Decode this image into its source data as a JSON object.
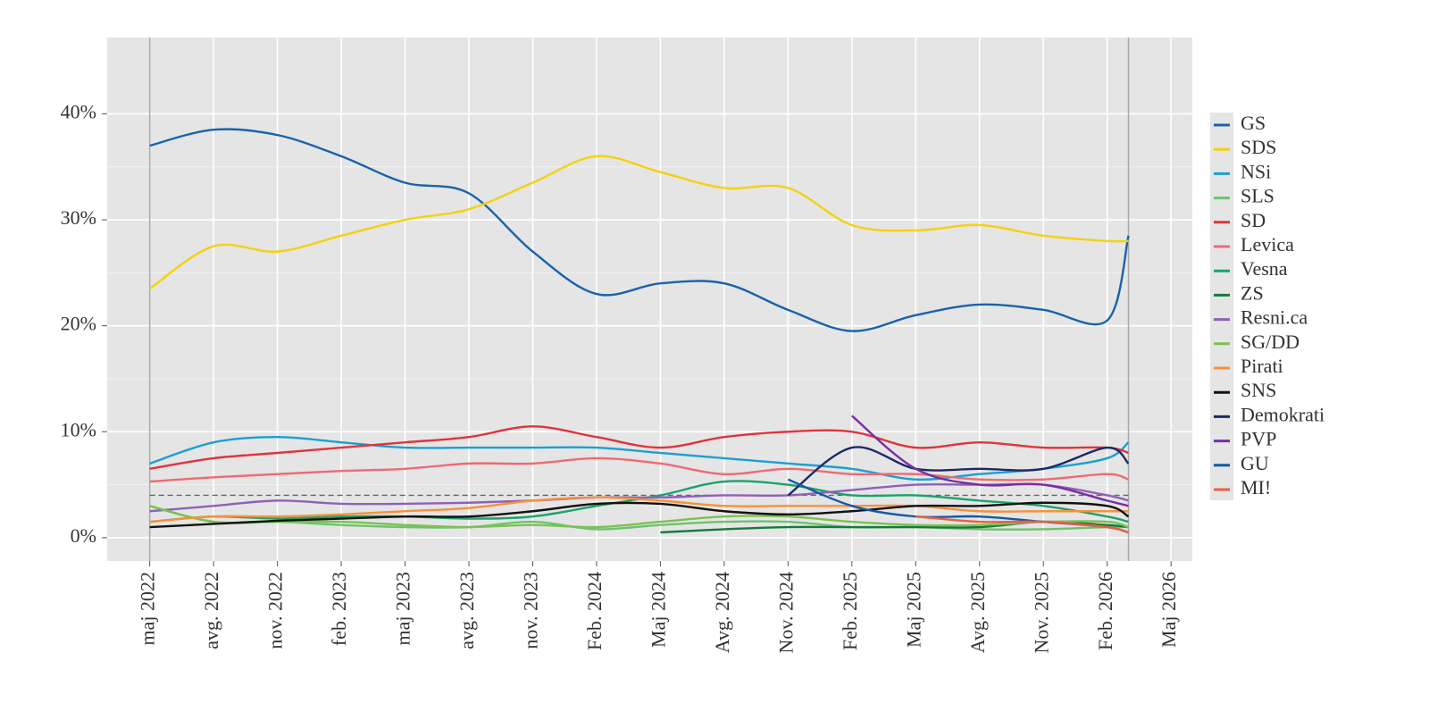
{
  "chart_data": {
    "type": "line",
    "x": [
      "2022-05",
      "2022-08",
      "2022-11",
      "2023-02",
      "2023-05",
      "2023-08",
      "2023-11",
      "2024-02",
      "2024-05",
      "2024-08",
      "2024-11",
      "2025-02",
      "2025-05",
      "2025-08",
      "2025-11",
      "2026-02",
      "2026-03"
    ],
    "xlim": [
      "2022-03",
      "2026-06"
    ],
    "xticks": [
      {
        "value": "2022-05",
        "label": "maj 2022"
      },
      {
        "value": "2022-08",
        "label": "avg. 2022"
      },
      {
        "value": "2022-11",
        "label": "nov. 2022"
      },
      {
        "value": "2023-02",
        "label": "feb. 2023"
      },
      {
        "value": "2023-05",
        "label": "maj 2023"
      },
      {
        "value": "2023-08",
        "label": "avg. 2023"
      },
      {
        "value": "2023-11",
        "label": "nov. 2023"
      },
      {
        "value": "2024-02",
        "label": "Feb. 2024"
      },
      {
        "value": "2024-05",
        "label": "Maj 2024"
      },
      {
        "value": "2024-08",
        "label": "Avg. 2024"
      },
      {
        "value": "2024-11",
        "label": "Nov. 2024"
      },
      {
        "value": "2025-02",
        "label": "Feb. 2025"
      },
      {
        "value": "2025-05",
        "label": "Maj 2025"
      },
      {
        "value": "2025-08",
        "label": "Avg. 2025"
      },
      {
        "value": "2025-11",
        "label": "Nov. 2025"
      },
      {
        "value": "2026-02",
        "label": "Feb. 2026"
      },
      {
        "value": "2026-05",
        "label": "Maj 2026"
      }
    ],
    "ylim": [
      -2.2,
      47.2
    ],
    "yticks": [
      {
        "value": 0,
        "label": "0%"
      },
      {
        "value": 10,
        "label": "10%"
      },
      {
        "value": 20,
        "label": "20%"
      },
      {
        "value": 30,
        "label": "30%"
      },
      {
        "value": 40,
        "label": "40%"
      }
    ],
    "threshold": 4,
    "grid": true,
    "legend": "right",
    "series": [
      {
        "name": "GS",
        "color": "#1a62ac",
        "values": [
          37,
          38.5,
          38,
          36,
          33.5,
          32.5,
          27,
          23,
          24,
          24,
          21.5,
          19.5,
          21,
          22,
          21.5,
          20.5,
          28.5
        ]
      },
      {
        "name": "SDS",
        "color": "#f5d10e",
        "values": [
          23.5,
          27.5,
          27,
          28.5,
          30,
          31,
          33.5,
          36,
          34.5,
          33,
          33,
          29.5,
          29,
          29.5,
          28.5,
          28,
          28
        ]
      },
      {
        "name": "NSi",
        "color": "#1aa0d2",
        "values": [
          7,
          9,
          9.5,
          9,
          8.5,
          8.5,
          8.5,
          8.5,
          8,
          7.5,
          7,
          6.5,
          5.5,
          6,
          6.5,
          7.5,
          9
        ]
      },
      {
        "name": "SLS",
        "color": "#6cc36e",
        "values": [
          3,
          1.5,
          1.5,
          1.2,
          1,
          1,
          1.5,
          0.8,
          1.2,
          1.5,
          1.5,
          1,
          1,
          0.8,
          0.8,
          1,
          1
        ]
      },
      {
        "name": "SD",
        "color": "#e2323a",
        "values": [
          6.5,
          7.5,
          8,
          8.5,
          9,
          9.5,
          10.5,
          9.5,
          8.5,
          9.5,
          10,
          10,
          8.5,
          9,
          8.5,
          8.5,
          8
        ]
      },
      {
        "name": "Levica",
        "color": "#ef6a73",
        "values": [
          5.3,
          5.7,
          6,
          6.3,
          6.5,
          7,
          7,
          7.5,
          7,
          6,
          6.5,
          6,
          6,
          5.5,
          5.5,
          6,
          5.5
        ]
      },
      {
        "name": "Vesna",
        "color": "#1aa36a",
        "values": [
          1.5,
          2,
          1.8,
          2,
          2,
          1.8,
          2,
          3,
          4,
          5.3,
          5,
          4,
          4,
          3.5,
          3,
          2,
          1.5
        ]
      },
      {
        "name": "ZS",
        "color": "#137b3a",
        "values": [
          null,
          null,
          null,
          null,
          null,
          null,
          null,
          null,
          0.5,
          0.8,
          1,
          1,
          1,
          1,
          1.5,
          1.2,
          1
        ]
      },
      {
        "name": "Resni.ca",
        "color": "#9060b8",
        "values": [
          2.5,
          3,
          3.5,
          3.2,
          3.2,
          3.3,
          3.5,
          3.8,
          3.8,
          4,
          4,
          4.5,
          5,
          5,
          5,
          4,
          3.5
        ]
      },
      {
        "name": "SG/DD",
        "color": "#7cc152",
        "values": [
          3,
          1.5,
          1.5,
          1.5,
          1.2,
          1,
          1.2,
          1,
          1.5,
          2,
          2,
          1.5,
          1.2,
          1.2,
          1.5,
          1.5,
          1
        ]
      },
      {
        "name": "Pirati",
        "color": "#f6913a",
        "values": [
          1.5,
          2,
          2,
          2.2,
          2.5,
          2.8,
          3.5,
          3.8,
          3.5,
          3,
          3,
          3,
          3,
          2.5,
          2.5,
          2.5,
          2.5
        ]
      },
      {
        "name": "SNS",
        "color": "#111111",
        "values": [
          1,
          1.3,
          1.6,
          1.8,
          2,
          2,
          2.5,
          3.2,
          3.2,
          2.5,
          2.2,
          2.5,
          3,
          3,
          3.3,
          3,
          2
        ]
      },
      {
        "name": "Demokrati",
        "color": "#1c2a66",
        "values": [
          null,
          null,
          null,
          null,
          null,
          null,
          null,
          null,
          null,
          null,
          4,
          8.5,
          6.5,
          6.5,
          6.5,
          8.5,
          7
        ]
      },
      {
        "name": "PVP",
        "color": "#7a2ea3",
        "values": [
          null,
          null,
          null,
          null,
          null,
          null,
          null,
          null,
          null,
          null,
          null,
          11.5,
          6.5,
          5,
          5,
          3.5,
          3
        ]
      },
      {
        "name": "GU",
        "color": "#1458a8",
        "values": [
          null,
          null,
          null,
          null,
          null,
          null,
          null,
          null,
          null,
          null,
          5.5,
          3,
          2,
          2,
          1.5,
          1,
          0.5
        ]
      },
      {
        "name": "MI!",
        "color": "#f05c40",
        "values": [
          null,
          null,
          null,
          null,
          null,
          null,
          null,
          null,
          null,
          null,
          null,
          null,
          2,
          1.5,
          1.5,
          1,
          0.5
        ]
      }
    ]
  }
}
